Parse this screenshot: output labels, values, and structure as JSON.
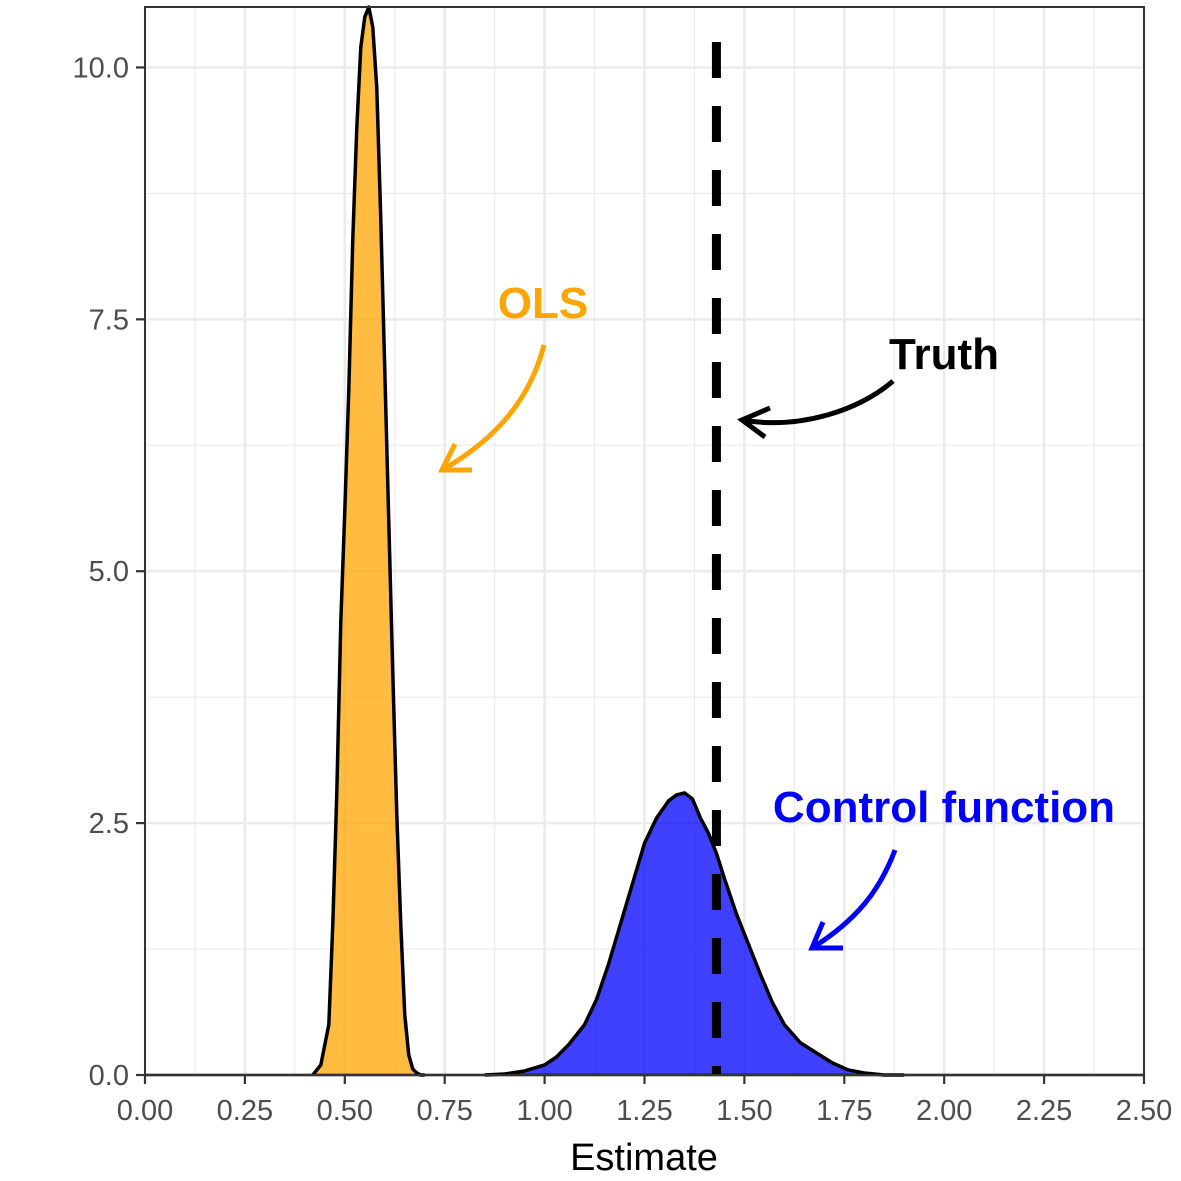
{
  "chart_data": {
    "type": "area",
    "title": "",
    "xlabel": "Estimate",
    "ylabel": "",
    "xlim": [
      0,
      2.5
    ],
    "ylim": [
      0,
      10.6
    ],
    "x_ticks": [
      "0.00",
      "0.25",
      "0.50",
      "0.75",
      "1.00",
      "1.25",
      "1.50",
      "1.75",
      "2.00",
      "2.25",
      "2.50"
    ],
    "y_ticks": [
      "0.0",
      "2.5",
      "5.0",
      "7.5",
      "10.0"
    ],
    "grid": true,
    "legend": "none",
    "series": [
      {
        "label": "OLS",
        "fill": "#FFA500",
        "x": [
          0.42,
          0.44,
          0.46,
          0.47,
          0.48,
          0.49,
          0.5,
          0.51,
          0.52,
          0.53,
          0.54,
          0.55,
          0.56,
          0.57,
          0.58,
          0.59,
          0.6,
          0.61,
          0.62,
          0.63,
          0.64,
          0.65,
          0.66,
          0.67,
          0.68,
          0.69,
          0.7
        ],
        "y": [
          0.0,
          0.1,
          0.5,
          1.5,
          2.8,
          4.5,
          5.6,
          6.8,
          8.3,
          9.4,
          10.2,
          10.5,
          10.6,
          10.4,
          9.8,
          8.5,
          7.0,
          5.5,
          4.0,
          2.6,
          1.5,
          0.6,
          0.2,
          0.06,
          0.02,
          0.0,
          0.0
        ]
      },
      {
        "label": "Control function",
        "fill": "#0000FF",
        "x": [
          0.85,
          0.9,
          0.95,
          1.0,
          1.03,
          1.06,
          1.1,
          1.13,
          1.16,
          1.19,
          1.22,
          1.25,
          1.28,
          1.31,
          1.33,
          1.35,
          1.37,
          1.39,
          1.41,
          1.43,
          1.45,
          1.48,
          1.51,
          1.54,
          1.57,
          1.6,
          1.64,
          1.68,
          1.72,
          1.76,
          1.8,
          1.85,
          1.9
        ],
        "y": [
          0.0,
          0.01,
          0.04,
          0.1,
          0.18,
          0.3,
          0.5,
          0.75,
          1.1,
          1.5,
          1.9,
          2.3,
          2.55,
          2.72,
          2.78,
          2.8,
          2.74,
          2.55,
          2.4,
          2.2,
          1.95,
          1.6,
          1.3,
          1.0,
          0.72,
          0.5,
          0.32,
          0.22,
          0.12,
          0.05,
          0.02,
          0.0,
          0.0
        ]
      }
    ],
    "vlines": [
      {
        "label": "Truth",
        "x": 1.43,
        "style": "dashed",
        "color": "#000000"
      }
    ],
    "annotations": [
      {
        "text": "OLS",
        "color": "#FFA500",
        "target": [
          0.75,
          6.0
        ]
      },
      {
        "text": "Truth",
        "color": "#000000",
        "target": [
          1.5,
          6.5
        ]
      },
      {
        "text": "Control function",
        "color": "#0000FF",
        "target": [
          1.67,
          1.25
        ]
      }
    ]
  }
}
